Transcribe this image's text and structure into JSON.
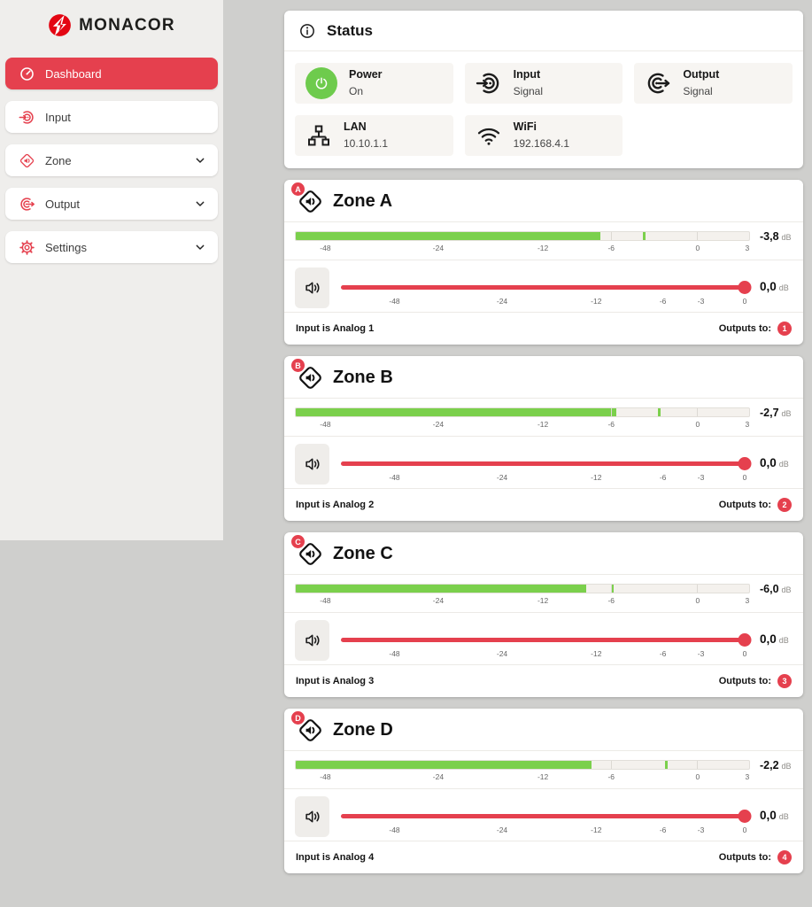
{
  "brand": {
    "name": "MONACOR",
    "logo_icon": "monacor-logo-icon"
  },
  "colors": {
    "accent_red": "#e5404e",
    "logo_red": "#e30613",
    "meter_green": "#7bd04c",
    "power_green": "#6ecb4d",
    "page_background": "#cfcfcd",
    "sidebar_background": "#efeeec",
    "tile_background": "#f7f5f2"
  },
  "sidebar": {
    "items": [
      {
        "label": "Dashboard",
        "icon": "dashboard-icon",
        "active": true,
        "expandable": false
      },
      {
        "label": "Input",
        "icon": "input-icon",
        "active": false,
        "expandable": false
      },
      {
        "label": "Zone",
        "icon": "zone-icon",
        "active": false,
        "expandable": true
      },
      {
        "label": "Output",
        "icon": "output-icon",
        "active": false,
        "expandable": true
      },
      {
        "label": "Settings",
        "icon": "settings-icon",
        "active": false,
        "expandable": true
      }
    ]
  },
  "status": {
    "title": "Status",
    "header_icon": "info-icon",
    "tiles": [
      {
        "icon": "power-icon",
        "icon_style": "green-circle",
        "label": "Power",
        "value": "On"
      },
      {
        "icon": "input-icon",
        "icon_style": "plain",
        "label": "Input",
        "value": "Signal"
      },
      {
        "icon": "output-icon",
        "icon_style": "plain",
        "label": "Output",
        "value": "Signal"
      },
      {
        "icon": "lan-icon",
        "icon_style": "plain",
        "label": "LAN",
        "value": "10.10.1.1"
      },
      {
        "icon": "wifi-icon",
        "icon_style": "plain",
        "label": "WiFi",
        "value": "192.168.4.1"
      }
    ]
  },
  "zones": [
    {
      "badge": "A",
      "title": "Zone A",
      "emblem_icon": "speaker-diamond-icon",
      "meter": {
        "value_label": "-3,8",
        "unit": "dB",
        "value_db": -3.8,
        "bar_db": -6.9,
        "ticks": [
          -48,
          -24,
          -12,
          -6,
          0,
          3
        ]
      },
      "volume": {
        "value_label": "0,0",
        "unit": "dB",
        "value_db": 0,
        "mute_icon": "speaker-icon",
        "ticks": [
          -48,
          -24,
          -12,
          -6,
          -3,
          0
        ]
      },
      "footer": {
        "input": "Input is Analog 1",
        "outputs_label": "Outputs to:",
        "outputs": [
          "1"
        ]
      }
    },
    {
      "badge": "B",
      "title": "Zone B",
      "emblem_icon": "speaker-diamond-icon",
      "meter": {
        "value_label": "-2,7",
        "unit": "dB",
        "value_db": -2.7,
        "bar_db": -5.6,
        "ticks": [
          -48,
          -24,
          -12,
          -6,
          0,
          3
        ]
      },
      "volume": {
        "value_label": "0,0",
        "unit": "dB",
        "value_db": 0,
        "mute_icon": "speaker-icon",
        "ticks": [
          -48,
          -24,
          -12,
          -6,
          -3,
          0
        ]
      },
      "footer": {
        "input": "Input is Analog 2",
        "outputs_label": "Outputs to:",
        "outputs": [
          "2"
        ]
      }
    },
    {
      "badge": "C",
      "title": "Zone C",
      "emblem_icon": "speaker-diamond-icon",
      "meter": {
        "value_label": "-6,0",
        "unit": "dB",
        "value_db": -6.0,
        "bar_db": -8.2,
        "ticks": [
          -48,
          -24,
          -12,
          -6,
          0,
          3
        ]
      },
      "volume": {
        "value_label": "0,0",
        "unit": "dB",
        "value_db": 0,
        "mute_icon": "speaker-icon",
        "ticks": [
          -48,
          -24,
          -12,
          -6,
          -3,
          0
        ]
      },
      "footer": {
        "input": "Input is Analog 3",
        "outputs_label": "Outputs to:",
        "outputs": [
          "3"
        ]
      }
    },
    {
      "badge": "D",
      "title": "Zone D",
      "emblem_icon": "speaker-diamond-icon",
      "meter": {
        "value_label": "-2,2",
        "unit": "dB",
        "value_db": -2.2,
        "bar_db": -7.7,
        "ticks": [
          -48,
          -24,
          -12,
          -6,
          0,
          3
        ]
      },
      "volume": {
        "value_label": "0,0",
        "unit": "dB",
        "value_db": 0,
        "mute_icon": "speaker-icon",
        "ticks": [
          -48,
          -24,
          -12,
          -6,
          -3,
          0
        ]
      },
      "footer": {
        "input": "Input is Analog 4",
        "outputs_label": "Outputs to:",
        "outputs": [
          "4"
        ]
      }
    }
  ]
}
